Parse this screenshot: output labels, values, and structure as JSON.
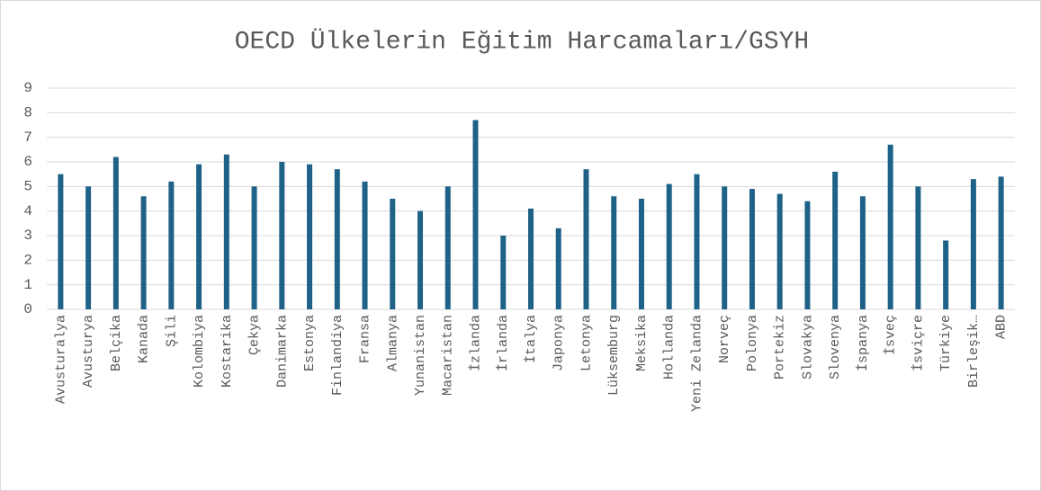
{
  "chart_data": {
    "type": "bar",
    "title": "OECD Ülkelerin Eğitim Harcamaları/GSYH",
    "categories": [
      "Avusturalya",
      "Avusturya",
      "Belçika",
      "Kanada",
      "Şili",
      "Kolombiya",
      "Kostarika",
      "Çekya",
      "Danimarka",
      "Estonya",
      "Finlandiya",
      "Fransa",
      "Almanya",
      "Yunanistan",
      "Macaristan",
      "İzlanda",
      "İrlanda",
      "İtalya",
      "Japonya",
      "Letonya",
      "Lüksemburg",
      "Meksika",
      "Hollanda",
      "Yeni Zelanda",
      "Norveç",
      "Polonya",
      "Portekiz",
      "Slovakya",
      "Slovenya",
      "İspanya",
      "İsveç",
      "İsviçre",
      "Türkiye",
      "Birleşik…",
      "ABD"
    ],
    "values": [
      5.5,
      5.0,
      6.2,
      4.6,
      5.2,
      5.9,
      6.3,
      5.0,
      6.0,
      5.9,
      5.7,
      5.2,
      4.5,
      4.0,
      5.0,
      7.7,
      3.0,
      4.1,
      3.3,
      5.7,
      4.6,
      4.5,
      5.1,
      5.5,
      5.0,
      4.9,
      4.7,
      4.4,
      5.6,
      4.6,
      6.7,
      5.0,
      2.8,
      5.3,
      5.4
    ],
    "color": "#1f6287",
    "ylim": [
      0,
      9
    ],
    "yticks": [
      0,
      1,
      2,
      3,
      4,
      5,
      6,
      7,
      8,
      9
    ],
    "grid": true
  }
}
